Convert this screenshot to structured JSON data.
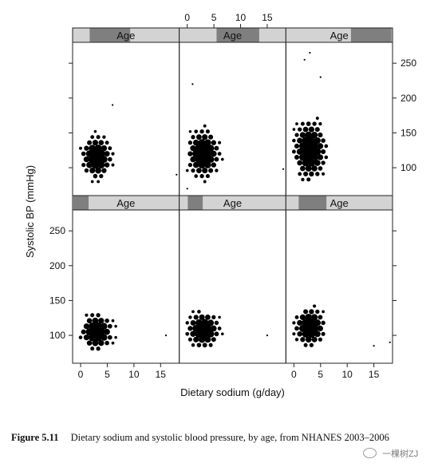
{
  "chart_data": {
    "type": "scatter",
    "style": "hexbin",
    "xlabel": "Dietary sodium (g/day)",
    "ylabel": "Systolic BP (mmHg)",
    "xlim": [
      -1.5,
      18.5
    ],
    "ylim": [
      60,
      280
    ],
    "x_ticks": [
      0,
      5,
      10,
      15
    ],
    "y_ticks": [
      100,
      150,
      200,
      250
    ],
    "marker_color": "#000000",
    "strip_fill": "#d3d3d3",
    "strip_indicator": "#7f7f7f",
    "panels": [
      {
        "row": 1,
        "col": 1,
        "strip_label": "Age",
        "age_range_fraction": [
          0.16,
          0.54
        ],
        "center": [
          3,
          115
        ],
        "spread": [
          1.3,
          14
        ],
        "x_range": [
          0,
          14
        ],
        "y_range": [
          80,
          180
        ],
        "outliers": [
          [
            18,
            90
          ],
          [
            6,
            190
          ]
        ]
      },
      {
        "row": 1,
        "col": 2,
        "strip_label": "Age",
        "age_range_fraction": [
          0.35,
          0.75
        ],
        "center": [
          3,
          120
        ],
        "spread": [
          1.4,
          16
        ],
        "x_range": [
          0,
          14
        ],
        "y_range": [
          80,
          215
        ],
        "outliers": [
          [
            18,
            98
          ],
          [
            1,
            220
          ],
          [
            0,
            70
          ]
        ]
      },
      {
        "row": 1,
        "col": 3,
        "strip_label": "Age",
        "age_range_fraction": [
          0.61,
          0.99
        ],
        "center": [
          3,
          125
        ],
        "spread": [
          1.4,
          20
        ],
        "x_range": [
          0,
          13
        ],
        "y_range": [
          75,
          240
        ],
        "outliers": [
          [
            3,
            265
          ],
          [
            2,
            255
          ],
          [
            5,
            230
          ]
        ]
      },
      {
        "row": 2,
        "col": 1,
        "strip_label": "Age",
        "age_range_fraction": [
          0.0,
          0.15
        ],
        "center": [
          3,
          105
        ],
        "spread": [
          1.4,
          12
        ],
        "x_range": [
          0,
          16
        ],
        "y_range": [
          65,
          145
        ],
        "outliers": [
          [
            16,
            100
          ]
        ]
      },
      {
        "row": 2,
        "col": 2,
        "strip_label": "Age",
        "age_range_fraction": [
          0.08,
          0.22
        ],
        "center": [
          3,
          108
        ],
        "spread": [
          1.4,
          12
        ],
        "x_range": [
          0,
          15
        ],
        "y_range": [
          70,
          145
        ],
        "outliers": [
          [
            15,
            100
          ]
        ]
      },
      {
        "row": 2,
        "col": 3,
        "strip_label": "Age",
        "age_range_fraction": [
          0.12,
          0.38
        ],
        "center": [
          3,
          112
        ],
        "spread": [
          1.3,
          13
        ],
        "x_range": [
          0,
          14
        ],
        "y_range": [
          70,
          155
        ],
        "outliers": [
          [
            18,
            90
          ],
          [
            15,
            85
          ]
        ]
      }
    ]
  },
  "caption": {
    "label": "Figure 5.11",
    "text": "Dietary sodium and systolic blood pressure, by age, from NHANES 2003–2006"
  },
  "watermark": {
    "text": "一棵树ZJ"
  }
}
